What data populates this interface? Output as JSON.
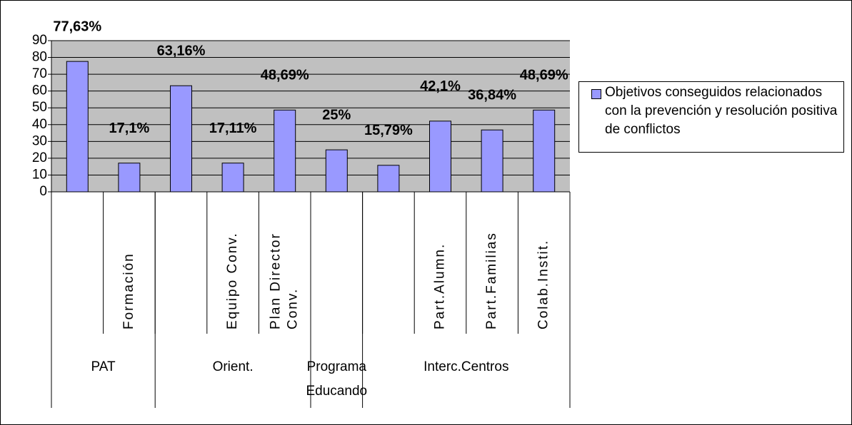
{
  "chart_data": {
    "type": "bar",
    "categories": [
      null,
      "Formación",
      null,
      "Equipo Conv.",
      "Plan Director Conv.",
      null,
      null,
      "Part.Alumn.",
      "Part.Familias",
      "Colab.Instit."
    ],
    "groups": [
      {
        "name": "PAT",
        "span": 2
      },
      {
        "name": "Orient.",
        "span": 3
      },
      {
        "name": "Programa Educando",
        "span": 1
      },
      {
        "name": "Interc.Centros",
        "span": 4
      }
    ],
    "series": [
      {
        "name": "Objetivos conseguidos relacionados con la prevención y resolución positiva de conflictos",
        "color": "#9999ff",
        "values": [
          77.63,
          17.1,
          63.16,
          17.11,
          48.69,
          25,
          15.79,
          42.1,
          36.84,
          48.69
        ],
        "value_labels": [
          "77,63%",
          "17,1%",
          "63,16%",
          "17,11%",
          "48,69%",
          "25%",
          "15,79%",
          "42,1%",
          "36,84%",
          "48,69%"
        ]
      }
    ],
    "ylim": [
      0,
      90
    ],
    "yticks": [
      0,
      10,
      20,
      30,
      40,
      50,
      60,
      70,
      80,
      90
    ],
    "grid": true,
    "legend": "right"
  }
}
